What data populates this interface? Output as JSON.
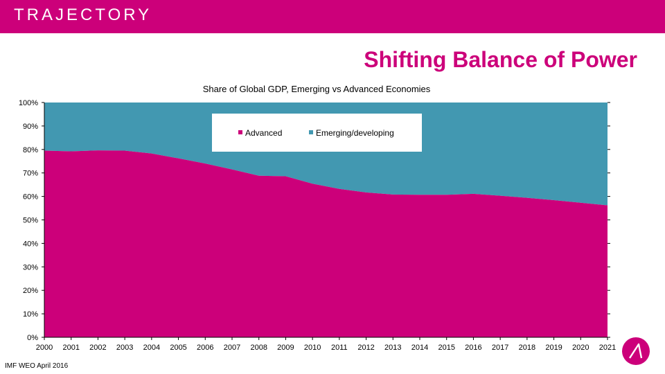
{
  "brand": {
    "name": "TRAJECTORY"
  },
  "page_title": "Shifting Balance of Power",
  "source": "IMF WEO April 2016",
  "colors": {
    "brand": "#cc007a",
    "advanced": "#cc007a",
    "emerging": "#4298b1"
  },
  "chart_data": {
    "type": "area",
    "title": "Share of Global GDP, Emerging vs Advanced Economies",
    "x": [
      2000,
      2001,
      2002,
      2003,
      2004,
      2005,
      2006,
      2007,
      2008,
      2009,
      2010,
      2011,
      2012,
      2013,
      2014,
      2015,
      2016,
      2017,
      2018,
      2019,
      2020,
      2021
    ],
    "xlabels": [
      "2000",
      "2001",
      "2002",
      "2003",
      "2004",
      "2005",
      "2006",
      "2007",
      "2008",
      "2009",
      "2010",
      "2011",
      "2012",
      "2013",
      "2014",
      "2015",
      "2016",
      "2017",
      "2018",
      "2019",
      "2020",
      "2021"
    ],
    "stacked": true,
    "series": [
      {
        "name": "Advanced",
        "color": "#cc007a",
        "values": [
          79.5,
          79.2,
          79.6,
          79.5,
          78.3,
          76.2,
          74.0,
          71.5,
          68.8,
          68.6,
          65.4,
          63.2,
          61.7,
          60.8,
          60.7,
          60.7,
          61.1,
          60.3,
          59.4,
          58.4,
          57.3,
          56.2
        ]
      },
      {
        "name": "Emerging/developing",
        "color": "#4298b1",
        "values": [
          20.5,
          20.8,
          20.4,
          20.5,
          21.7,
          23.8,
          26.0,
          28.5,
          31.2,
          31.4,
          34.6,
          36.8,
          38.3,
          39.2,
          39.3,
          39.3,
          38.9,
          39.7,
          40.6,
          41.6,
          42.7,
          43.8
        ]
      }
    ],
    "ylim": [
      0,
      100
    ],
    "yticks": [
      0,
      10,
      20,
      30,
      40,
      50,
      60,
      70,
      80,
      90,
      100
    ],
    "ytick_labels": [
      "0%",
      "10%",
      "20%",
      "30%",
      "40%",
      "50%",
      "60%",
      "70%",
      "80%",
      "90%",
      "100%"
    ],
    "legend": "top-center"
  }
}
